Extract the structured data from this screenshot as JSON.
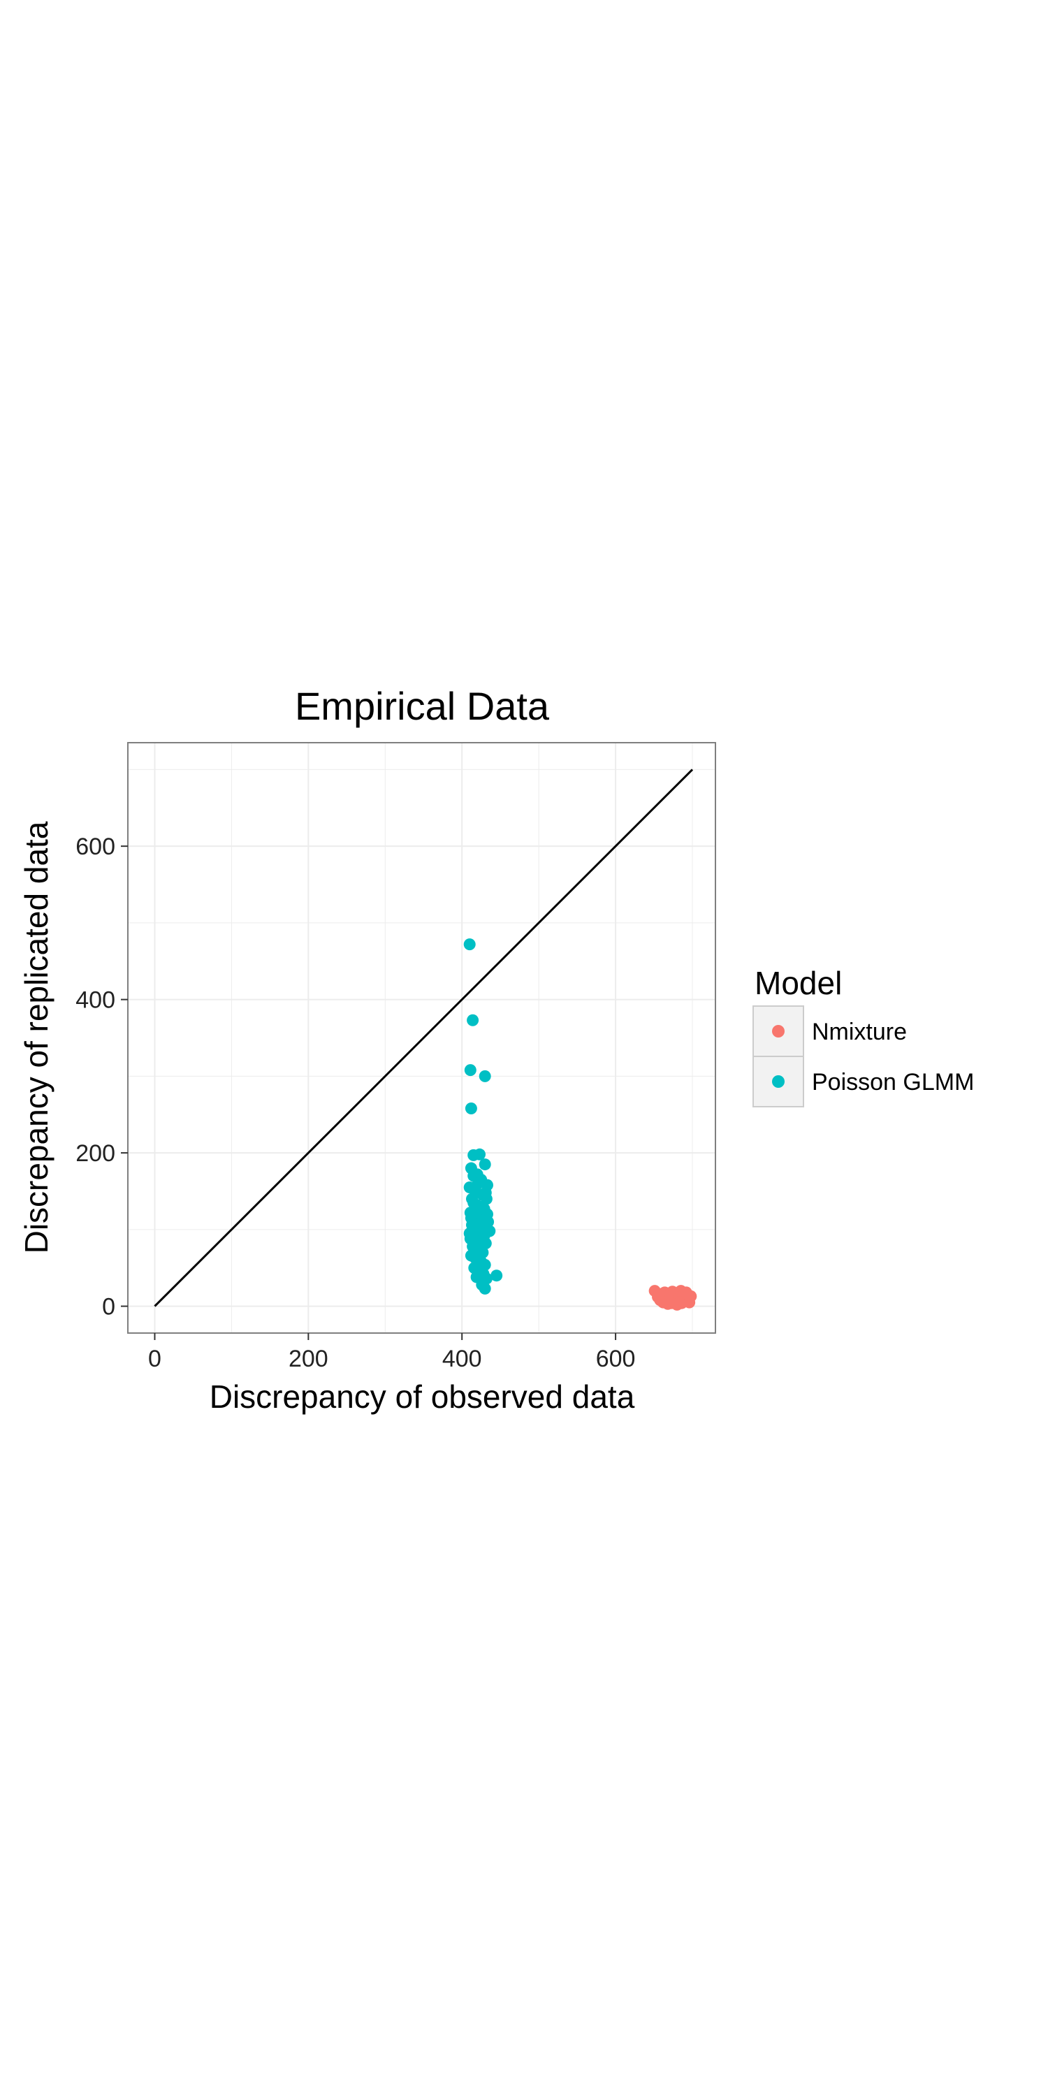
{
  "chart_data": {
    "type": "scatter",
    "title": "Empirical Data",
    "xlabel": "Discrepancy of observed data",
    "ylabel": "Discrepancy of replicated data",
    "xlim": [
      -35,
      730
    ],
    "ylim": [
      -35,
      735
    ],
    "xticks": [
      0,
      200,
      400,
      600
    ],
    "yticks": [
      0,
      200,
      400,
      600
    ],
    "grid": true,
    "reference_line": {
      "from": [
        0,
        0
      ],
      "to": [
        700,
        700
      ],
      "color": "#000000"
    },
    "legend": {
      "title": "Model",
      "placement": "right",
      "entries": [
        "Nmixture",
        "Poisson GLMM"
      ]
    },
    "series": [
      {
        "name": "Nmixture",
        "color": "#F8766D",
        "points": [
          [
            651,
            20
          ],
          [
            655,
            12
          ],
          [
            658,
            8
          ],
          [
            660,
            15
          ],
          [
            662,
            5
          ],
          [
            664,
            18
          ],
          [
            666,
            10
          ],
          [
            668,
            3
          ],
          [
            670,
            14
          ],
          [
            672,
            8
          ],
          [
            674,
            19
          ],
          [
            676,
            6
          ],
          [
            678,
            12
          ],
          [
            680,
            2
          ],
          [
            681,
            16
          ],
          [
            683,
            9
          ],
          [
            685,
            20
          ],
          [
            686,
            4
          ],
          [
            688,
            13
          ],
          [
            690,
            7
          ],
          [
            692,
            18
          ],
          [
            694,
            10
          ],
          [
            696,
            5
          ],
          [
            698,
            13
          ],
          [
            663,
            9
          ],
          [
            669,
            11
          ],
          [
            675,
            15
          ],
          [
            679,
            7
          ],
          [
            684,
            12
          ],
          [
            689,
            15
          ],
          [
            671,
            17
          ],
          [
            677,
            9
          ],
          [
            687,
            11
          ],
          [
            667,
            13
          ],
          [
            682,
            5
          ],
          [
            691,
            12
          ],
          [
            659,
            11
          ],
          [
            673,
            4
          ],
          [
            693,
            15
          ],
          [
            657,
            16
          ]
        ]
      },
      {
        "name": "Poisson GLMM",
        "color": "#00BFC4",
        "points": [
          [
            410,
            472
          ],
          [
            414,
            373
          ],
          [
            411,
            308
          ],
          [
            430,
            300
          ],
          [
            412,
            258
          ],
          [
            415,
            197
          ],
          [
            423,
            198
          ],
          [
            430,
            185
          ],
          [
            412,
            180
          ],
          [
            420,
            172
          ],
          [
            425,
            165
          ],
          [
            433,
            158
          ],
          [
            410,
            155
          ],
          [
            418,
            150
          ],
          [
            427,
            145
          ],
          [
            432,
            140
          ],
          [
            415,
            135
          ],
          [
            422,
            130
          ],
          [
            429,
            127
          ],
          [
            411,
            122
          ],
          [
            419,
            118
          ],
          [
            426,
            115
          ],
          [
            434,
            110
          ],
          [
            413,
            106
          ],
          [
            421,
            102
          ],
          [
            428,
            100
          ],
          [
            436,
            98
          ],
          [
            410,
            95
          ],
          [
            417,
            90
          ],
          [
            424,
            86
          ],
          [
            431,
            82
          ],
          [
            414,
            78
          ],
          [
            420,
            74
          ],
          [
            427,
            70
          ],
          [
            412,
            66
          ],
          [
            418,
            62
          ],
          [
            425,
            58
          ],
          [
            430,
            54
          ],
          [
            416,
            50
          ],
          [
            422,
            46
          ],
          [
            428,
            42
          ],
          [
            445,
            40
          ],
          [
            419,
            38
          ],
          [
            432,
            36
          ],
          [
            426,
            28
          ],
          [
            430,
            23
          ],
          [
            413,
            140
          ],
          [
            425,
            125
          ],
          [
            417,
            110
          ],
          [
            429,
            92
          ],
          [
            415,
            170
          ],
          [
            421,
            160
          ],
          [
            411,
            88
          ],
          [
            433,
            120
          ],
          [
            419,
            132
          ],
          [
            423,
            76
          ],
          [
            416,
            64
          ],
          [
            426,
            104
          ],
          [
            412,
            115
          ],
          [
            431,
            148
          ]
        ]
      }
    ]
  }
}
